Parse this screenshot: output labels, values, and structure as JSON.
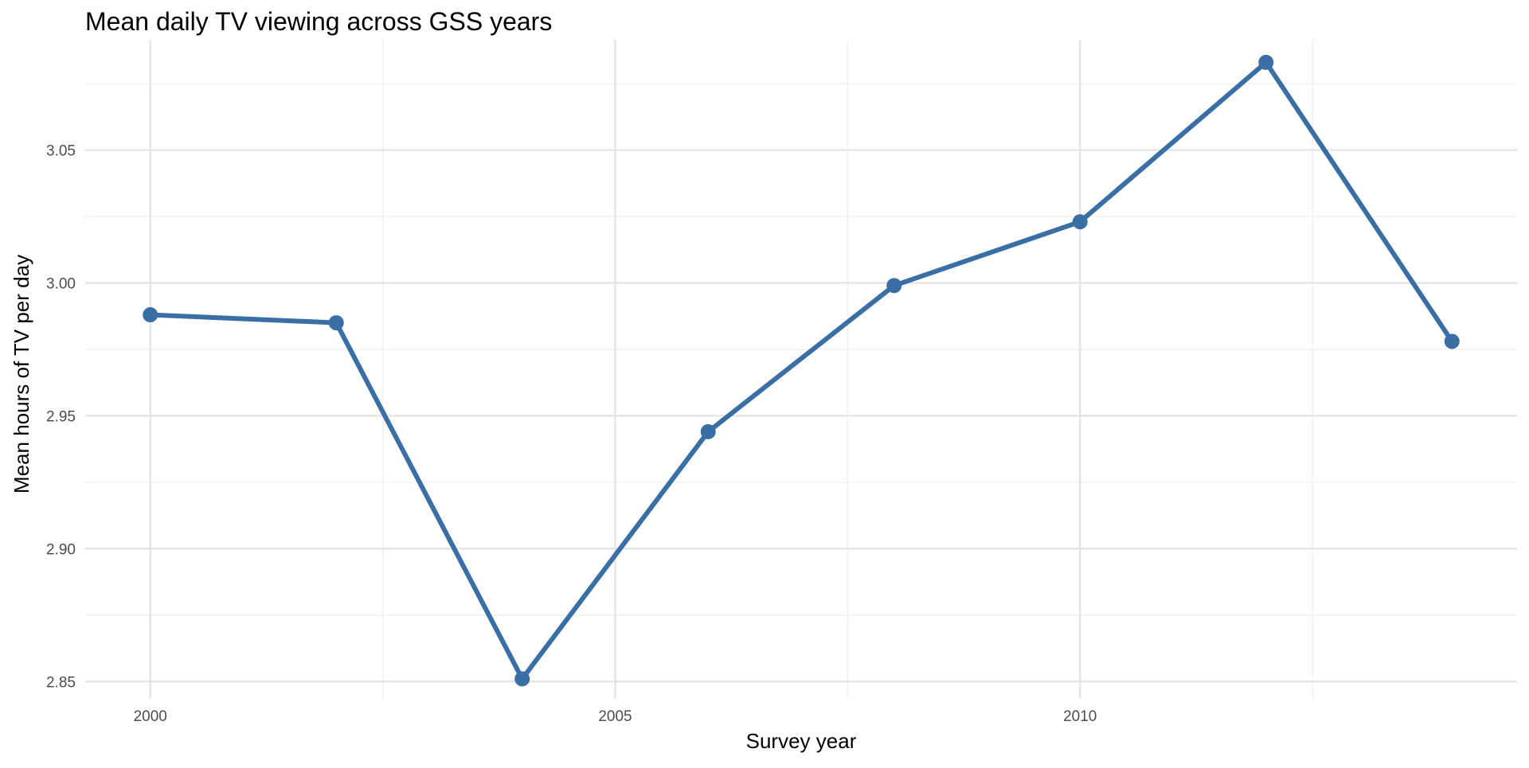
{
  "chart_data": {
    "type": "line",
    "title": "Mean daily TV viewing across GSS years",
    "xlabel": "Survey year",
    "ylabel": "Mean hours of TV per day",
    "x": [
      2000,
      2002,
      2004,
      2006,
      2008,
      2010,
      2012,
      2014
    ],
    "series": [
      {
        "values": [
          2.988,
          2.985,
          2.851,
          2.944,
          2.999,
          3.023,
          3.083,
          2.978
        ]
      }
    ],
    "x_ticks": [
      2000,
      2005,
      2010
    ],
    "x_tick_labels": [
      "2000",
      "2005",
      "2010"
    ],
    "y_ticks": [
      2.85,
      2.9,
      2.95,
      3.0,
      3.05
    ],
    "y_tick_labels": [
      "2.85",
      "2.90",
      "2.95",
      "3.00",
      "3.05"
    ],
    "xlim": [
      1999.3,
      2014.7
    ],
    "ylim": [
      2.8435,
      3.0915
    ],
    "grid": true,
    "legend": "none",
    "colors": {
      "line": "#3a6fa6",
      "point": "#3a6fa6",
      "grid_major": "#e3e3e3",
      "grid_minor": "#efefef",
      "tick_text": "#4d4d4d"
    }
  }
}
